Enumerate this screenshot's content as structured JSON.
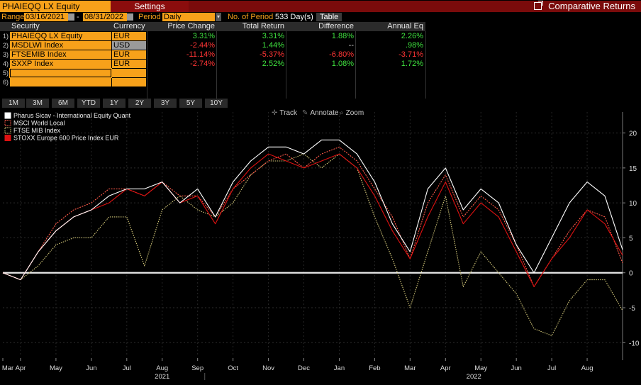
{
  "header": {
    "ticker": "PHAIEQQ LX Equity",
    "settings_tab": "Settings",
    "comparative_returns": "Comparative Returns"
  },
  "controls": {
    "range_label": "Range",
    "start_date": "03/16/2021",
    "dash": "-",
    "end_date": "08/31/2022",
    "period_label": "Period",
    "period_value": "Daily",
    "num_period_label": "No. of Period",
    "num_period_value": "533 Day(s)",
    "table_button": "Table"
  },
  "table": {
    "headers": [
      "Security",
      "Currency",
      "Price Change",
      "Total Return",
      "Difference",
      "Annual Eq"
    ],
    "rows": [
      {
        "idx": "1)",
        "security": "PHAIEQQ LX Equity",
        "currency": "EUR",
        "price_change": "3.31%",
        "total_return": "3.31%",
        "difference": "1.88%",
        "annual_eq": "2.26%"
      },
      {
        "idx": "2)",
        "security": "MSDLWI Index",
        "currency": "USD",
        "price_change": "-2.44%",
        "total_return": "1.44%",
        "difference": "--",
        "annual_eq": ".98%"
      },
      {
        "idx": "3)",
        "security": "FTSEMIB Index",
        "currency": "EUR",
        "price_change": "-11.14%",
        "total_return": "-5.37%",
        "difference": "-6.80%",
        "annual_eq": "-3.71%"
      },
      {
        "idx": "4)",
        "security": "SXXP Index",
        "currency": "EUR",
        "price_change": "-2.74%",
        "total_return": "2.52%",
        "difference": "1.08%",
        "annual_eq": "1.72%"
      },
      {
        "idx": "5)",
        "security": "",
        "currency": "",
        "price_change": "",
        "total_return": "",
        "difference": "",
        "annual_eq": ""
      },
      {
        "idx": "6)",
        "security": "",
        "currency": "",
        "price_change": "",
        "total_return": "",
        "difference": "",
        "annual_eq": ""
      }
    ]
  },
  "periods": [
    "1M",
    "3M",
    "6M",
    "YTD",
    "1Y",
    "2Y",
    "3Y",
    "5Y",
    "10Y"
  ],
  "chart_tools": {
    "track": "Track",
    "annotate": "Annotate",
    "zoom": "Zoom"
  },
  "colors": {
    "accent": "#f7a11a",
    "header_red": "#8b0d0d",
    "positive": "#3fe03f",
    "negative": "#ff3535"
  },
  "chart_data": {
    "type": "line",
    "legend_position": "top-left",
    "y_ticks": [
      20,
      15,
      10,
      5,
      0,
      -5,
      -10
    ],
    "ylim": [
      -12,
      23
    ],
    "x_months": [
      {
        "label": "Mar",
        "x": 0.0
      },
      {
        "label": "Apr",
        "x": 0.5
      },
      {
        "label": "May",
        "x": 1.5
      },
      {
        "label": "Jun",
        "x": 2.5
      },
      {
        "label": "Jul",
        "x": 3.5
      },
      {
        "label": "Aug",
        "x": 4.5
      },
      {
        "label": "Sep",
        "x": 5.5
      },
      {
        "label": "Oct",
        "x": 6.5
      },
      {
        "label": "Nov",
        "x": 7.5
      },
      {
        "label": "Dec",
        "x": 8.5
      },
      {
        "label": "Jan",
        "x": 9.5
      },
      {
        "label": "Feb",
        "x": 10.5
      },
      {
        "label": "Mar",
        "x": 11.5
      },
      {
        "label": "Apr",
        "x": 12.5
      },
      {
        "label": "May",
        "x": 13.5
      },
      {
        "label": "Jun",
        "x": 14.5
      },
      {
        "label": "Jul",
        "x": 15.5
      },
      {
        "label": "Aug",
        "x": 16.5
      }
    ],
    "x_years": [
      {
        "label": "2021",
        "x": 4.5
      },
      {
        "label": "2022",
        "x": 13.3
      }
    ],
    "x": [
      0.0,
      0.5,
      1.0,
      1.5,
      2.0,
      2.5,
      3.0,
      3.5,
      4.0,
      4.5,
      5.0,
      5.5,
      6.0,
      6.5,
      7.0,
      7.5,
      8.0,
      8.5,
      9.0,
      9.5,
      10.0,
      10.5,
      11.0,
      11.5,
      12.0,
      12.5,
      13.0,
      13.5,
      14.0,
      14.5,
      15.0,
      15.5,
      16.0,
      16.5,
      17.0,
      17.5
    ],
    "series": [
      {
        "name": "Pharus Sicav - International Equity Quant",
        "color": "#ffffff",
        "dash": "",
        "values": [
          0,
          -1,
          3,
          6,
          8,
          9,
          11,
          12,
          12,
          13,
          10,
          12,
          8,
          13,
          16,
          18,
          18,
          17,
          19,
          19,
          17,
          13,
          7,
          3,
          12,
          15,
          9,
          12,
          10,
          4,
          0,
          5,
          10,
          13,
          11,
          3.3
        ]
      },
      {
        "name": "MSCI World Local",
        "color": "#ff5a4a",
        "dash": "2,1.5",
        "values": [
          0,
          -1,
          3,
          7,
          9,
          10,
          12,
          12,
          11,
          13,
          11,
          11,
          8,
          12,
          14,
          16,
          17,
          15,
          17,
          18,
          16,
          12,
          8,
          2,
          10,
          14,
          8,
          11,
          9,
          4,
          -2,
          2,
          6,
          9,
          8,
          1.4
        ]
      },
      {
        "name": "FTSE MIB Index",
        "color": "#d4c97a",
        "dash": "1.5,1.5",
        "values": [
          0,
          -1,
          1,
          4,
          5,
          5,
          8,
          8,
          1,
          9,
          11,
          9,
          8,
          10,
          14,
          16,
          16,
          17,
          15,
          17,
          15,
          8,
          2,
          -5,
          3,
          11,
          -2,
          3,
          0,
          -3,
          -8,
          -9,
          -4,
          -1,
          -1,
          -5.4
        ]
      },
      {
        "name": "STOXX Europe 600 Price Index EUR",
        "color": "#dd1111",
        "dash": "",
        "values": [
          0,
          -1,
          3,
          6,
          8,
          9,
          10,
          12,
          11,
          13,
          10,
          11,
          7,
          12,
          15,
          17,
          16,
          15,
          16,
          17,
          15,
          11,
          6,
          2,
          8,
          13,
          7,
          10,
          8,
          3,
          -2,
          2,
          5,
          9,
          7,
          2.5
        ]
      }
    ]
  }
}
